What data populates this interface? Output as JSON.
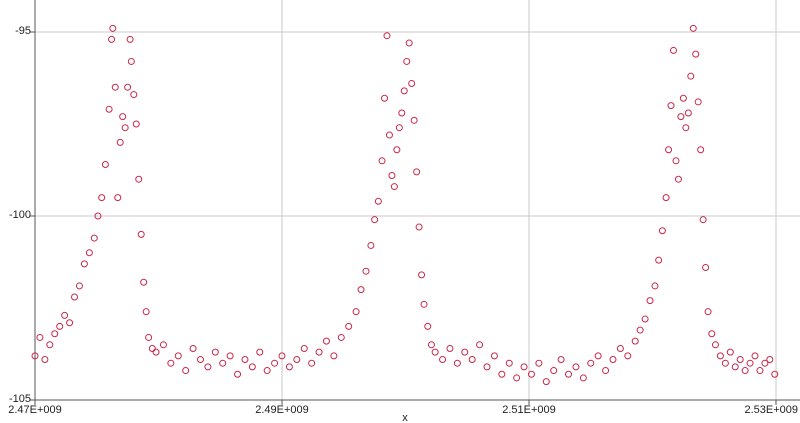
{
  "chart_data": {
    "type": "scatter",
    "x_label": "x",
    "xlim": [
      2470000000.0,
      2530000000.0
    ],
    "ylim": [
      -105,
      -94.13
    ],
    "xticks": [
      {
        "value": 2470000000.0,
        "label": "2.47E+009"
      },
      {
        "value": 2490000000.0,
        "label": "2.49E+009"
      },
      {
        "value": 2510000000.0,
        "label": "2.51E+009"
      },
      {
        "value": 2530000000.0,
        "label": "2.53E+009"
      }
    ],
    "yticks": [
      -95,
      -100,
      -105
    ],
    "grid": true,
    "series": [
      {
        "color": "#c8284a",
        "x": [
          2470000000.0,
          2470400000.0,
          2470800000.0,
          2471200000.0,
          2471600000.0,
          2472000000.0,
          2472400000.0,
          2472800000.0,
          2473200000.0,
          2473600000.0,
          2474000000.0,
          2474400000.0,
          2474800000.0,
          2475100000.0,
          2475400000.0,
          2475700000.0,
          2476000000.0,
          2476200000.0,
          2476300000.0,
          2476500000.0,
          2476700000.0,
          2476900000.0,
          2477100000.0,
          2477300000.0,
          2477500000.0,
          2477700000.0,
          2477800000.0,
          2478000000.0,
          2478200000.0,
          2478400000.0,
          2478600000.0,
          2478800000.0,
          2479000000.0,
          2479200000.0,
          2479500000.0,
          2479800000.0,
          2480400000.0,
          2481000000.0,
          2481600000.0,
          2482200000.0,
          2482800000.0,
          2483400000.0,
          2484000000.0,
          2484600000.0,
          2485200000.0,
          2485800000.0,
          2486400000.0,
          2487000000.0,
          2487600000.0,
          2488200000.0,
          2488800000.0,
          2489400000.0,
          2490000000.0,
          2490600000.0,
          2491200000.0,
          2491800000.0,
          2492400000.0,
          2493000000.0,
          2493600000.0,
          2494200000.0,
          2494800000.0,
          2495400000.0,
          2496000000.0,
          2496400000.0,
          2496800000.0,
          2497200000.0,
          2497500000.0,
          2497800000.0,
          2498100000.0,
          2498300000.0,
          2498500000.0,
          2498700000.0,
          2498900000.0,
          2499100000.0,
          2499300000.0,
          2499500000.0,
          2499700000.0,
          2499900000.0,
          2500100000.0,
          2500300000.0,
          2500500000.0,
          2500700000.0,
          2500900000.0,
          2501100000.0,
          2501300000.0,
          2501500000.0,
          2501800000.0,
          2502100000.0,
          2502400000.0,
          2503000000.0,
          2503600000.0,
          2504200000.0,
          2504800000.0,
          2505400000.0,
          2506000000.0,
          2506600000.0,
          2507200000.0,
          2507800000.0,
          2508400000.0,
          2509000000.0,
          2509600000.0,
          2510200000.0,
          2510800000.0,
          2511400000.0,
          2512000000.0,
          2512600000.0,
          2513200000.0,
          2513800000.0,
          2514400000.0,
          2515000000.0,
          2515600000.0,
          2516200000.0,
          2516800000.0,
          2517400000.0,
          2518000000.0,
          2518600000.0,
          2519000000.0,
          2519400000.0,
          2519800000.0,
          2520200000.0,
          2520500000.0,
          2520800000.0,
          2521100000.0,
          2521300000.0,
          2521500000.0,
          2521700000.0,
          2521900000.0,
          2522100000.0,
          2522300000.0,
          2522500000.0,
          2522700000.0,
          2522900000.0,
          2523100000.0,
          2523300000.0,
          2523500000.0,
          2523700000.0,
          2523900000.0,
          2524100000.0,
          2524300000.0,
          2524500000.0,
          2524800000.0,
          2525100000.0,
          2525500000.0,
          2525900000.0,
          2526300000.0,
          2526700000.0,
          2527100000.0,
          2527500000.0,
          2527900000.0,
          2528300000.0,
          2528700000.0,
          2529100000.0,
          2529500000.0,
          2529900000.0
        ],
        "values": [
          -103.8,
          -103.3,
          -103.9,
          -103.5,
          -103.2,
          -103.0,
          -102.7,
          -102.9,
          -102.2,
          -101.9,
          -101.3,
          -101.0,
          -100.6,
          -100.0,
          -99.5,
          -98.6,
          -97.1,
          -95.2,
          -94.9,
          -96.5,
          -99.5,
          -98.0,
          -97.3,
          -97.6,
          -96.5,
          -95.2,
          -95.8,
          -96.7,
          -97.5,
          -99.0,
          -100.5,
          -101.8,
          -102.6,
          -103.3,
          -103.6,
          -103.7,
          -103.5,
          -104.0,
          -103.8,
          -104.2,
          -103.6,
          -103.9,
          -104.1,
          -103.7,
          -104.0,
          -103.8,
          -104.3,
          -103.9,
          -104.1,
          -103.7,
          -104.2,
          -104.0,
          -103.8,
          -104.1,
          -103.9,
          -103.6,
          -104.0,
          -103.7,
          -103.4,
          -103.8,
          -103.3,
          -103.0,
          -102.6,
          -102.0,
          -101.5,
          -100.8,
          -100.1,
          -99.6,
          -98.5,
          -96.8,
          -95.1,
          -97.8,
          -98.9,
          -99.2,
          -98.2,
          -97.6,
          -97.2,
          -96.6,
          -95.8,
          -95.3,
          -96.4,
          -97.4,
          -98.8,
          -100.3,
          -101.6,
          -102.4,
          -103.0,
          -103.5,
          -103.7,
          -103.9,
          -103.6,
          -104.0,
          -103.7,
          -103.9,
          -103.5,
          -104.1,
          -103.8,
          -104.3,
          -104.0,
          -104.4,
          -104.1,
          -104.3,
          -104.0,
          -104.5,
          -104.2,
          -103.9,
          -104.3,
          -104.1,
          -104.4,
          -104.0,
          -103.8,
          -104.2,
          -103.9,
          -103.6,
          -103.8,
          -103.4,
          -103.1,
          -102.8,
          -102.3,
          -101.9,
          -101.2,
          -100.4,
          -99.5,
          -98.2,
          -97.0,
          -95.5,
          -98.5,
          -99.0,
          -97.3,
          -96.8,
          -97.6,
          -97.2,
          -96.2,
          -94.9,
          -95.6,
          -96.9,
          -98.2,
          -100.1,
          -101.4,
          -102.6,
          -103.2,
          -103.5,
          -103.8,
          -104.0,
          -103.7,
          -104.1,
          -103.9,
          -104.2,
          -104.0,
          -103.8,
          -104.2,
          -104.0,
          -103.9,
          -104.3
        ]
      }
    ]
  }
}
